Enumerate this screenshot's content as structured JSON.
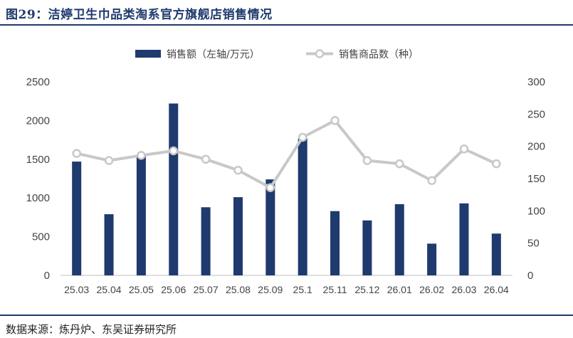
{
  "figure": {
    "title": "图29：洁婷卫生巾品类淘系官方旗舰店销售情况",
    "source": "数据来源：炼丹炉、东吴证券研究所"
  },
  "colors": {
    "bar": "#1f3a6e",
    "line": "#c8c8c8",
    "marker_fill": "#ffffff",
    "rule": "#1f3a6e"
  },
  "chart_data": {
    "type": "bar",
    "categories": [
      "25.03",
      "25.04",
      "25.05",
      "25.06",
      "25.07",
      "25.08",
      "25.09",
      "25.1",
      "25.11",
      "25.12",
      "26.01",
      "26.02",
      "26.03",
      "26.04"
    ],
    "series": [
      {
        "name": "销售额（左轴/万元）",
        "type": "bar",
        "axis": "left",
        "values": [
          1470,
          790,
          1540,
          2220,
          880,
          1010,
          1240,
          1770,
          830,
          710,
          920,
          410,
          930,
          540
        ]
      },
      {
        "name": "销售商品数（种）",
        "type": "line",
        "axis": "right",
        "values": [
          189,
          178,
          186,
          193,
          180,
          163,
          136,
          214,
          240,
          178,
          173,
          147,
          196,
          173
        ]
      }
    ],
    "ylim_left": [
      0,
      2500
    ],
    "ylim_right": [
      0,
      300
    ],
    "yticks_left": [
      "0",
      "500",
      "1000",
      "1500",
      "2000",
      "2500"
    ],
    "yticks_right": [
      "0",
      "50",
      "100",
      "150",
      "200",
      "250",
      "300"
    ],
    "legend_position": "top-center",
    "grid": false
  }
}
